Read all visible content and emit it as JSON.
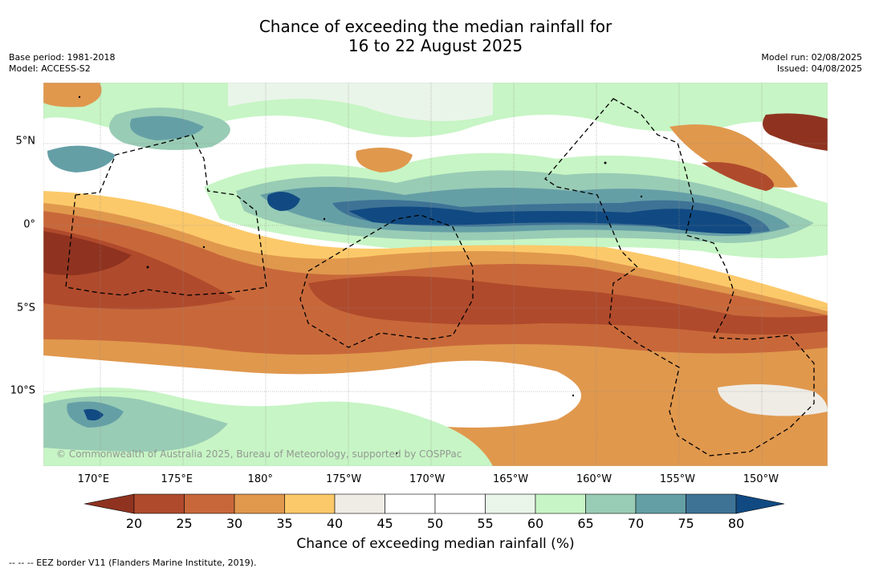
{
  "title_line1": "Chance of exceeding the median rainfall for",
  "title_line2": "16 to 22 August 2025",
  "base_period": "Base period: 1981-2018",
  "model": "Model: ACCESS-S2",
  "model_run": "Model run: 02/08/2025",
  "issued": "Issued: 04/08/2025",
  "copyright": "© Commonwealth of Australia 2025, Bureau of Meteorology, supported by COSPPac",
  "colorbar_label": "Chance of exceeding median rainfall (%)",
  "footer": "-- -- -- EEZ border V11 (Flanders Marine Institute, 2019).",
  "x_ticks": [
    {
      "label": "170°E",
      "lon": 170
    },
    {
      "label": "175°E",
      "lon": 175
    },
    {
      "label": "180°",
      "lon": 180
    },
    {
      "label": "175°W",
      "lon": 185
    },
    {
      "label": "170°W",
      "lon": 190
    },
    {
      "label": "165°W",
      "lon": 195
    },
    {
      "label": "160°W",
      "lon": 200
    },
    {
      "label": "155°W",
      "lon": 205
    },
    {
      "label": "150°W",
      "lon": 210
    }
  ],
  "y_ticks": [
    {
      "label": "5°N",
      "lat": 5
    },
    {
      "label": "0°",
      "lat": 0
    },
    {
      "label": "5°S",
      "lat": -5
    },
    {
      "label": "10°S",
      "lat": -10
    }
  ],
  "colorbar": {
    "ticks": [
      "20",
      "25",
      "30",
      "35",
      "40",
      "45",
      "50",
      "55",
      "60",
      "65",
      "70",
      "75",
      "80"
    ],
    "colors": [
      "#8f3320",
      "#b04a2c",
      "#c8683a",
      "#e0984d",
      "#fcc96a",
      "#efece6",
      "#ffffff",
      "#ffffff",
      "#eaf5ea",
      "#c7f5c5",
      "#99ccb5",
      "#659fa6",
      "#3e7396",
      "#114a82"
    ]
  },
  "chart_data": {
    "type": "heatmap",
    "title": "Chance of exceeding the median rainfall for 16 to 22 August 2025",
    "colorbar_label": "Chance of exceeding median rainfall (%)",
    "colorbar_range": [
      20,
      80
    ],
    "colorbar_step": 5,
    "lon_range": [
      167,
      214
    ],
    "lat_range": [
      -14.5,
      8.5
    ],
    "features": [
      {
        "description": "band of high chance",
        "value": 80,
        "lon": [
          184,
          206
        ],
        "lat": [
          -0.5,
          1.5
        ]
      },
      {
        "description": "band of low chance",
        "value": 25,
        "lon": [
          167,
          214
        ],
        "lat": [
          -8,
          -2
        ]
      },
      {
        "description": "low chance area",
        "value": 20,
        "lon": [
          205,
          214
        ],
        "lat": [
          3,
          7
        ]
      }
    ]
  }
}
